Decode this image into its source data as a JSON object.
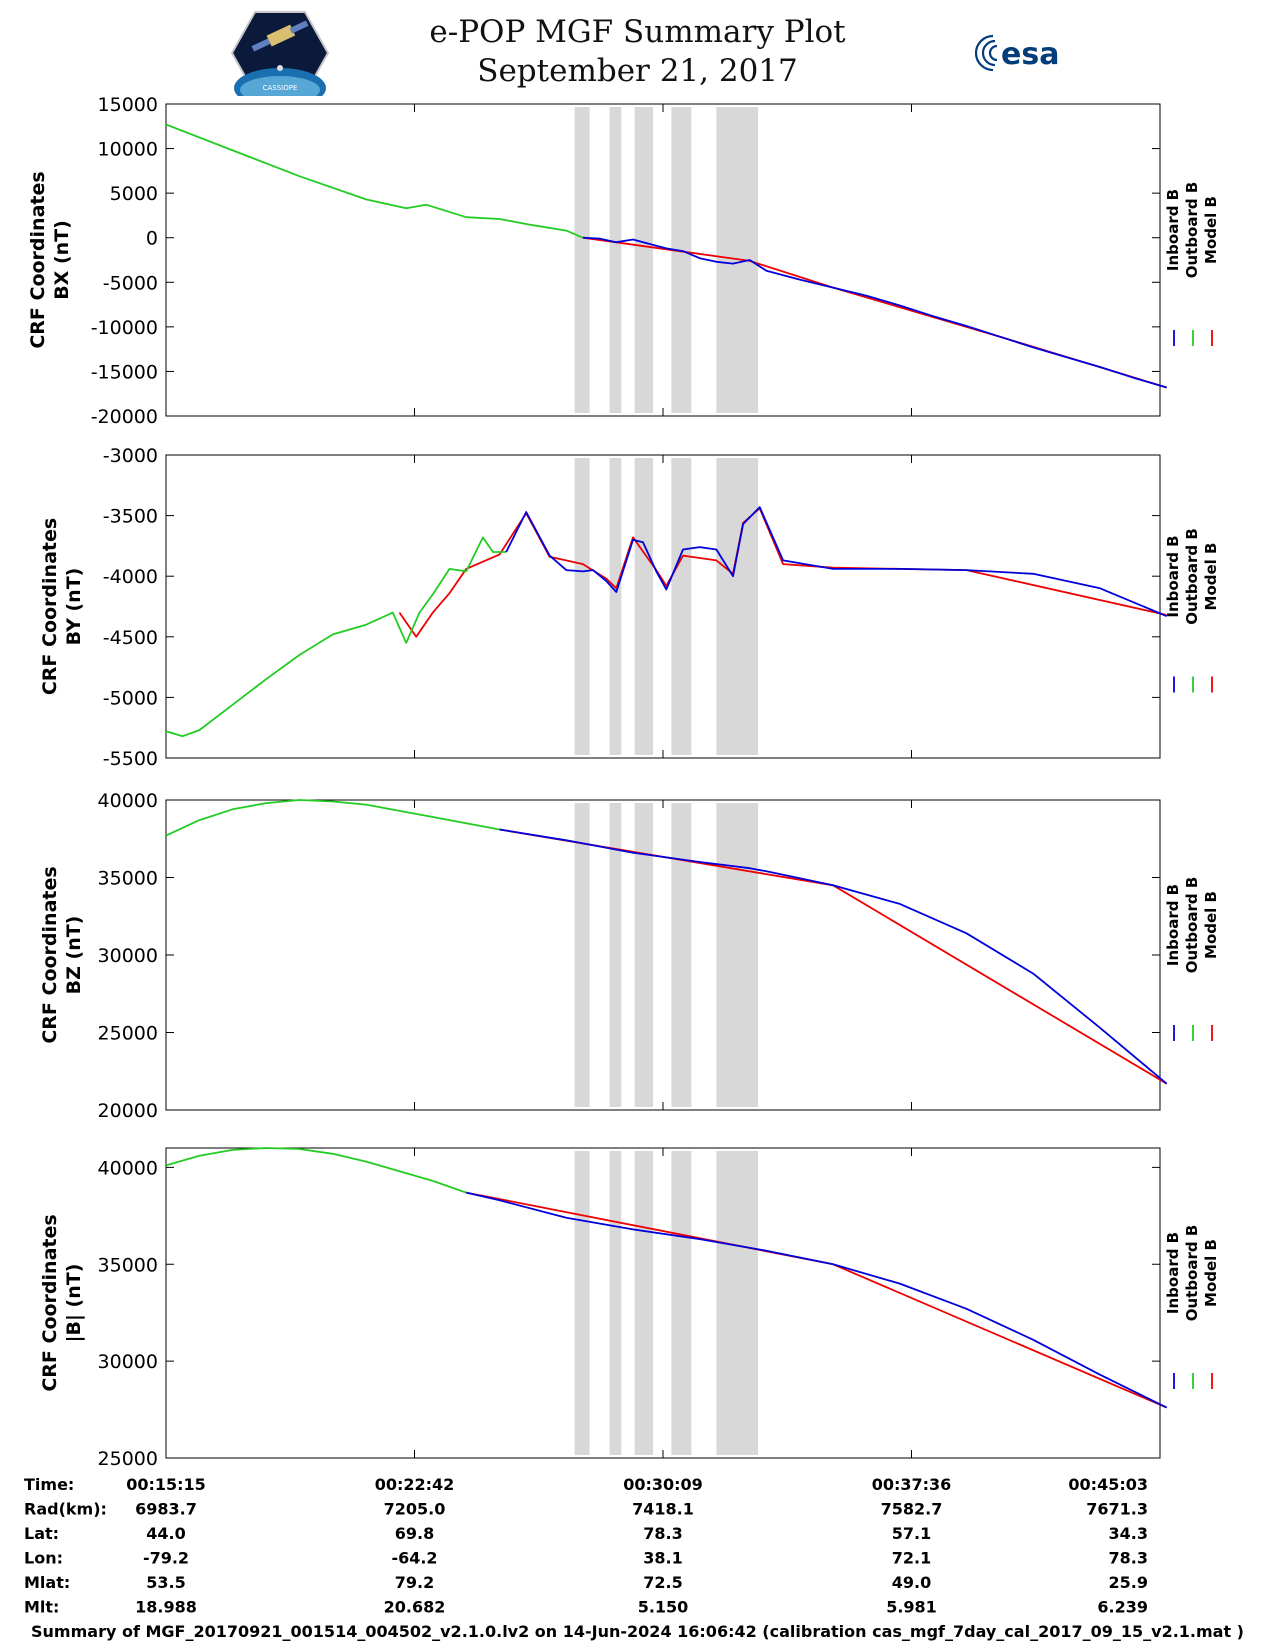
{
  "header": {
    "title": "e-POP MGF Summary Plot",
    "date": "September 21, 2017",
    "logo_left_label": "CASSIOPE",
    "logo_right_label": "esa"
  },
  "chart_data": [
    {
      "type": "line",
      "ylabel": [
        "CRF Coordinates",
        "BX (nT)"
      ],
      "ylim": [
        -20000,
        15000
      ],
      "yticks": [
        15000,
        10000,
        5000,
        0,
        -5000,
        -10000,
        -15000,
        -20000
      ],
      "legend": [
        "Inboard B",
        "Outboard B",
        "Model B"
      ],
      "legend_colors": [
        "#0000dd",
        "#22cc22",
        "#ee0000"
      ],
      "x_minutes": [
        0,
        2,
        4,
        6,
        8,
        10,
        12,
        14,
        16,
        18,
        20,
        22,
        24,
        26,
        28,
        30
      ],
      "series": [
        {
          "name": "Outboard B",
          "x": [
            0,
            2,
            4,
            6,
            7.2,
            7.8,
            9,
            10,
            11,
            12,
            12.5
          ],
          "y": [
            12700,
            9800,
            6900,
            4300,
            3300,
            3700,
            2300,
            2100,
            1400,
            800,
            0
          ]
        },
        {
          "name": "Inboard B",
          "x": [
            12.5,
            13,
            13.5,
            14,
            14.5,
            15,
            15.5,
            16,
            16.5,
            17,
            17.5,
            18,
            19,
            20,
            21,
            22,
            23,
            24,
            25,
            26,
            27,
            28,
            29,
            30
          ],
          "y": [
            0,
            -100,
            -500,
            -200,
            -700,
            -1200,
            -1500,
            -2300,
            -2700,
            -2900,
            -2500,
            -3700,
            -4700,
            -5600,
            -6500,
            -7600,
            -8800,
            -9900,
            -11100,
            -12300,
            -13400,
            -14500,
            -15700,
            -16800
          ]
        },
        {
          "name": "Model B",
          "x": [
            12.5,
            15,
            17.5,
            20,
            25,
            30
          ],
          "y": [
            0,
            -1300,
            -2600,
            -5600,
            -11100,
            -16800
          ]
        }
      ],
      "gaps": [
        [
          12.25,
          12.7
        ],
        [
          13.3,
          13.65
        ],
        [
          14.05,
          14.6
        ],
        [
          15.15,
          15.75
        ],
        [
          16.5,
          17.75
        ]
      ]
    },
    {
      "type": "line",
      "ylabel": [
        "CRF Coordinates",
        "BY (nT)"
      ],
      "ylim": [
        -5500,
        -3000
      ],
      "yticks": [
        -3000,
        -3500,
        -4000,
        -4500,
        -5000,
        -5500
      ],
      "legend": [
        "Inboard B",
        "Outboard B",
        "Model B"
      ],
      "legend_colors": [
        "#0000dd",
        "#22cc22",
        "#ee0000"
      ],
      "series": [
        {
          "name": "Outboard B",
          "x": [
            0,
            0.5,
            1,
            2,
            3,
            4,
            5,
            6,
            6.8,
            7.2,
            7.6,
            8,
            8.5,
            9,
            9.5,
            9.8,
            10.2
          ],
          "y": [
            -5280,
            -5320,
            -5270,
            -5060,
            -4850,
            -4650,
            -4480,
            -4400,
            -4300,
            -4550,
            -4300,
            -4150,
            -3940,
            -3960,
            -3680,
            -3800,
            -3800
          ]
        },
        {
          "name": "Inboard B",
          "x": [
            10.2,
            10.8,
            11.5,
            12,
            12.5,
            12.8,
            13.2,
            13.5,
            14,
            14.3,
            14.7,
            15,
            15.5,
            16,
            16.5,
            17,
            17.3,
            17.8,
            18.5,
            20,
            22,
            24,
            26,
            28,
            30
          ],
          "y": [
            -3800,
            -3470,
            -3830,
            -3950,
            -3960,
            -3950,
            -4040,
            -4130,
            -3700,
            -3720,
            -3960,
            -4110,
            -3780,
            -3760,
            -3780,
            -4000,
            -3570,
            -3430,
            -3870,
            -3940,
            -3940,
            -3950,
            -3980,
            -4100,
            -4330
          ]
        },
        {
          "name": "Model B",
          "x": [
            7,
            7.5,
            8,
            8.5,
            9,
            10,
            10.8,
            11.5,
            12.5,
            13.2,
            13.5,
            14,
            14.7,
            15,
            15.5,
            16.5,
            17,
            17.3,
            17.8,
            18.5,
            20,
            24,
            30
          ],
          "y": [
            -4300,
            -4500,
            -4300,
            -4140,
            -3940,
            -3820,
            -3480,
            -3840,
            -3900,
            -4020,
            -4100,
            -3680,
            -3950,
            -4080,
            -3830,
            -3870,
            -3980,
            -3560,
            -3440,
            -3900,
            -3930,
            -3950,
            -4320
          ]
        }
      ],
      "gaps": [
        [
          12.25,
          12.7
        ],
        [
          13.3,
          13.65
        ],
        [
          14.05,
          14.6
        ],
        [
          15.15,
          15.75
        ],
        [
          16.5,
          17.75
        ]
      ]
    },
    {
      "type": "line",
      "ylabel": [
        "CRF Coordinates",
        "BZ (nT)"
      ],
      "ylim": [
        20000,
        40000
      ],
      "yticks": [
        40000,
        35000,
        30000,
        25000,
        20000
      ],
      "legend": [
        "Inboard B",
        "Outboard B",
        "Model B"
      ],
      "legend_colors": [
        "#0000dd",
        "#22cc22",
        "#ee0000"
      ],
      "series": [
        {
          "name": "Outboard B",
          "x": [
            0,
            1,
            2,
            3,
            4,
            5,
            6,
            7,
            8,
            9,
            10
          ],
          "y": [
            37700,
            38700,
            39400,
            39800,
            40000,
            39900,
            39700,
            39300,
            38900,
            38500,
            38100
          ]
        },
        {
          "name": "Inboard B",
          "x": [
            10,
            12,
            14,
            16,
            17.5,
            18,
            20,
            22,
            24,
            26,
            28,
            30
          ],
          "y": [
            38100,
            37400,
            36600,
            36000,
            35600,
            35400,
            34500,
            33300,
            31400,
            28800,
            25300,
            21700
          ]
        },
        {
          "name": "Model B",
          "x": [
            10,
            20,
            30
          ],
          "y": [
            38100,
            34500,
            21700
          ]
        }
      ],
      "gaps": [
        [
          12.25,
          12.7
        ],
        [
          13.3,
          13.65
        ],
        [
          14.05,
          14.6
        ],
        [
          15.15,
          15.75
        ],
        [
          16.5,
          17.75
        ]
      ]
    },
    {
      "type": "line",
      "ylabel": [
        "CRF Coordinates",
        "|B| (nT)"
      ],
      "ylim": [
        25000,
        41000
      ],
      "yticks": [
        40000,
        35000,
        30000,
        25000
      ],
      "legend": [
        "Inboard B",
        "Outboard B",
        "Model B"
      ],
      "legend_colors": [
        "#0000dd",
        "#22cc22",
        "#ee0000"
      ],
      "series": [
        {
          "name": "Outboard B",
          "x": [
            0,
            1,
            2,
            3,
            4,
            5,
            6,
            7,
            8,
            9
          ],
          "y": [
            40100,
            40600,
            40900,
            41000,
            40950,
            40700,
            40300,
            39800,
            39300,
            38700
          ]
        },
        {
          "name": "Inboard B",
          "x": [
            9,
            10,
            12,
            14,
            16,
            18,
            20,
            22,
            24,
            26,
            28,
            30
          ],
          "y": [
            38700,
            38300,
            37400,
            36800,
            36300,
            35700,
            35000,
            34000,
            32700,
            31100,
            29300,
            27600
          ]
        },
        {
          "name": "Model B",
          "x": [
            9,
            20,
            30
          ],
          "y": [
            38700,
            35000,
            27600
          ]
        }
      ],
      "gaps": [
        [
          12.25,
          12.7
        ],
        [
          13.3,
          13.65
        ],
        [
          14.05,
          14.6
        ],
        [
          15.15,
          15.75
        ],
        [
          16.5,
          17.75
        ]
      ]
    }
  ],
  "xaxis": {
    "tick_minutes": [
      0,
      7.45,
      14.9,
      22.35,
      29.8
    ]
  },
  "ephemeris": {
    "rows": [
      {
        "label": "Time:",
        "values": [
          "00:15:15",
          "00:22:42",
          "00:30:09",
          "00:37:36",
          "00:45:03"
        ]
      },
      {
        "label": "Rad(km):",
        "values": [
          "6983.7",
          "7205.0",
          "7418.1",
          "7582.7",
          "7671.3"
        ]
      },
      {
        "label": "Lat:",
        "values": [
          "44.0",
          "69.8",
          "78.3",
          "57.1",
          "34.3"
        ]
      },
      {
        "label": "Lon:",
        "values": [
          "-79.2",
          "-64.2",
          "38.1",
          "72.1",
          "78.3"
        ]
      },
      {
        "label": "Mlat:",
        "values": [
          "53.5",
          "79.2",
          "72.5",
          "49.0",
          "25.9"
        ]
      },
      {
        "label": "Mlt:",
        "values": [
          "18.988",
          "20.682",
          "5.150",
          "5.981",
          "6.239"
        ]
      }
    ]
  },
  "footer": {
    "text": "Summary of MGF_20170921_001514_004502_v2.1.0.lv2 on 14-Jun-2024 16:06:42 (calibration cas_mgf_7day_cal_2017_09_15_v2.1.mat )"
  }
}
